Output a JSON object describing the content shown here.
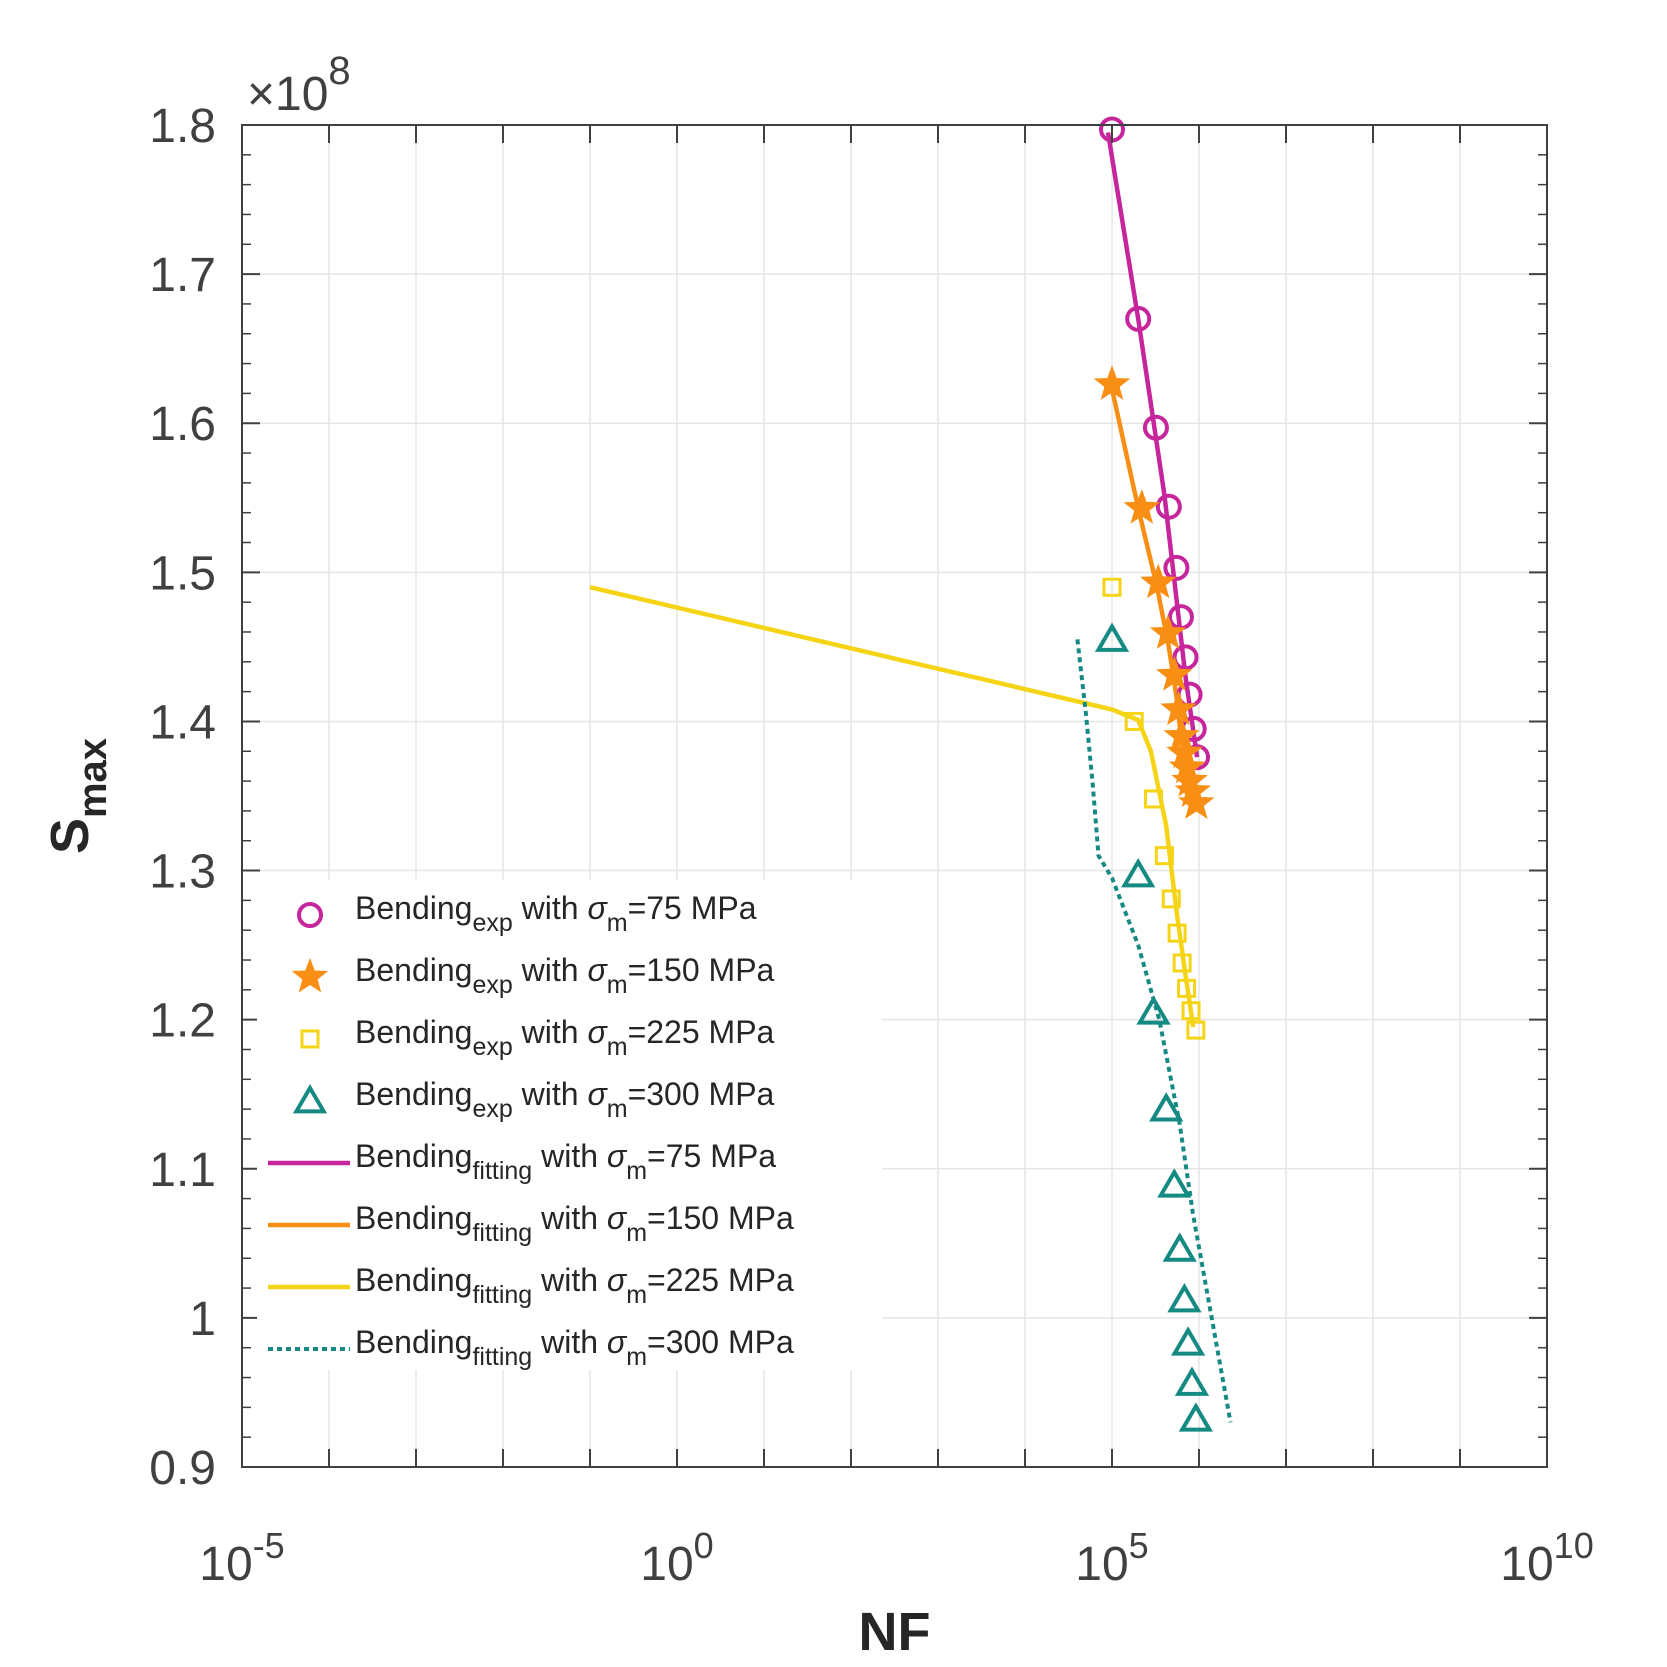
{
  "chart_data": {
    "type": "scatter",
    "xlabel": "NF",
    "ylabel": "S",
    "ylabel_sub": "max",
    "xscale": "log",
    "xlim": [
      1e-05,
      10000000000
    ],
    "ylim": [
      90000000,
      180000000
    ],
    "y_exponent_label": "×10",
    "y_exponent_power": "8",
    "x_ticks": [
      {
        "value": 1e-05,
        "base": "10",
        "exp": "-5"
      },
      {
        "value": 1,
        "base": "10",
        "exp": "0"
      },
      {
        "value": 100000,
        "base": "10",
        "exp": "5"
      },
      {
        "value": 10000000000,
        "base": "10",
        "exp": "10"
      }
    ],
    "y_ticks": [
      {
        "value": 90000000,
        "label": "0.9"
      },
      {
        "value": 100000000,
        "label": "1"
      },
      {
        "value": 110000000,
        "label": "1.1"
      },
      {
        "value": 120000000,
        "label": "1.2"
      },
      {
        "value": 130000000,
        "label": "1.3"
      },
      {
        "value": 140000000,
        "label": "1.4"
      },
      {
        "value": 150000000,
        "label": "1.5"
      },
      {
        "value": 160000000,
        "label": "1.6"
      },
      {
        "value": 170000000,
        "label": "1.7"
      },
      {
        "value": 180000000,
        "label": "1.8"
      }
    ],
    "grid": true,
    "legend_position": "lower-left",
    "series": [
      {
        "name": "Bending",
        "name_sub": "exp",
        "name_rest": " with ",
        "name_sigma": "σ",
        "name_sigma_sub": "m",
        "name_value": "=75 MPa",
        "kind": "marker",
        "marker": "circle",
        "color": "#c7259c",
        "x": [
          100000,
          200000,
          320000,
          450000,
          550000,
          620000,
          700000,
          780000,
          870000,
          950000
        ],
        "y": [
          179700000,
          167000000,
          159700000,
          154400000,
          150300000,
          147000000,
          144300000,
          141800000,
          139500000,
          137600000
        ]
      },
      {
        "name": "Bending",
        "name_sub": "exp",
        "name_rest": " with ",
        "name_sigma": "σ",
        "name_sigma_sub": "m",
        "name_value": "=150 MPa",
        "kind": "marker",
        "marker": "star",
        "color": "#f98e14",
        "x": [
          100000,
          220000,
          340000,
          440000,
          520000,
          580000,
          630000,
          680000,
          730000,
          780000,
          850000,
          930000
        ],
        "y": [
          162600000,
          154300000,
          149300000,
          145900000,
          143100000,
          140800000,
          139000000,
          137900000,
          136900000,
          136000000,
          135300000,
          134500000
        ]
      },
      {
        "name": "Bending",
        "name_sub": "exp",
        "name_rest": " with ",
        "name_sigma": "σ",
        "name_sigma_sub": "m",
        "name_value": "=225 MPa",
        "kind": "marker",
        "marker": "square",
        "color": "#f5d416",
        "x": [
          100000,
          180000,
          300000,
          400000,
          480000,
          560000,
          640000,
          720000,
          810000,
          920000
        ],
        "y": [
          149000000,
          140000000,
          134800000,
          131000000,
          128100000,
          125800000,
          123800000,
          122100000,
          120600000,
          119300000
        ]
      },
      {
        "name": "Bending",
        "name_sub": "exp",
        "name_rest": " with ",
        "name_sigma": "σ",
        "name_sigma_sub": "m",
        "name_value": "=300 MPa",
        "kind": "marker",
        "marker": "triangle",
        "color": "#148a82",
        "x": [
          100000,
          200000,
          300000,
          420000,
          520000,
          600000,
          680000,
          750000,
          830000,
          920000
        ],
        "y": [
          145500000,
          129700000,
          120500000,
          114000000,
          108900000,
          104600000,
          101200000,
          98300000,
          95600000,
          93200000
        ]
      },
      {
        "name": "Bending",
        "name_sub": "fitting",
        "name_rest": " with ",
        "name_sigma": "σ",
        "name_sigma_sub": "m",
        "name_value": "=75 MPa",
        "kind": "line",
        "dash": "solid",
        "color": "#c7259c",
        "x": [
          90000,
          200000,
          400000,
          700000,
          950000
        ],
        "y": [
          179500000,
          167000000,
          155200000,
          143000000,
          137600000
        ]
      },
      {
        "name": "Bending",
        "name_sub": "fitting",
        "name_rest": " with ",
        "name_sigma": "σ",
        "name_sigma_sub": "m",
        "name_value": "=150 MPa",
        "kind": "line",
        "dash": "solid",
        "color": "#f98e14",
        "x": [
          100000,
          200000,
          330000,
          450000,
          550000,
          620000,
          700000,
          780000
        ],
        "y": [
          162300000,
          154300000,
          149000000,
          145000000,
          141700000,
          139000000,
          137000000,
          135200000
        ]
      },
      {
        "name": "Bending",
        "name_sub": "fitting",
        "name_rest": " with ",
        "name_sigma": "σ",
        "name_sigma_sub": "m",
        "name_value": "=225 MPa",
        "kind": "line",
        "dash": "solid",
        "color": "#f5d416",
        "x": [
          0.1,
          100000,
          200000,
          280000,
          420000,
          560000,
          700000,
          860000
        ],
        "y": [
          149000000,
          140800000,
          140100000,
          138000000,
          133000000,
          127000000,
          123000000,
          119500000
        ]
      },
      {
        "name": "Bending",
        "name_sub": "fitting",
        "name_rest": " with ",
        "name_sigma": "σ",
        "name_sigma_sub": "m",
        "name_value": "=300 MPa",
        "kind": "line",
        "dash": "dotted",
        "color": "#148a82",
        "x": [
          40000,
          50000,
          60000,
          70000,
          100000,
          200000,
          350000,
          600000,
          850000,
          1400000,
          2300000
        ],
        "y": [
          145500000,
          140600000,
          135800000,
          131000000,
          129500000,
          125000000,
          120000000,
          113000000,
          107000000,
          100000000,
          93000000
        ]
      }
    ]
  }
}
